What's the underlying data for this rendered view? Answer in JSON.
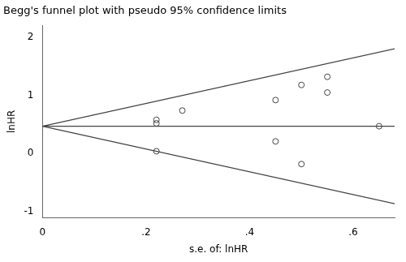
{
  "chart_data": {
    "type": "scatter",
    "title": "Begg's funnel plot with pseudo 95% confidence limits",
    "xlabel": "s.e. of: lnHR",
    "ylabel": "lnHR",
    "xlim": [
      0,
      0.68
    ],
    "ylim": [
      -1.1,
      2.2
    ],
    "xticks": [
      0,
      {
        "value": 0.2,
        "label": ".2"
      },
      {
        "value": 0.4,
        "label": ".4"
      },
      {
        "value": 0.6,
        "label": ".6"
      }
    ],
    "yticks": [
      -1,
      0,
      1,
      2
    ],
    "grid": false,
    "series": [
      {
        "type": "line",
        "line_style": "solid",
        "color": "#444444",
        "x": [
          0,
          0.68
        ],
        "values": [
          0.47,
          1.8028
        ]
      },
      {
        "type": "line",
        "line_style": "solid",
        "color": "#444444",
        "x": [
          0,
          0.68
        ],
        "values": [
          0.47,
          -0.8628
        ]
      },
      {
        "type": "line",
        "line_style": "solid",
        "color": "#444444",
        "x": [
          0,
          0.68
        ],
        "values": [
          0.47,
          0.47
        ]
      },
      {
        "type": "scatter",
        "marker": "circle",
        "color": "#444444",
        "x": [
          0.22,
          0.22,
          0.27,
          0.45,
          0.5,
          0.55,
          0.55,
          0.65,
          0.22,
          0.45,
          0.5
        ],
        "values": [
          0.58,
          0.52,
          0.74,
          0.92,
          1.18,
          1.32,
          1.05,
          0.47,
          0.04,
          0.21,
          -0.18
        ]
      }
    ]
  }
}
